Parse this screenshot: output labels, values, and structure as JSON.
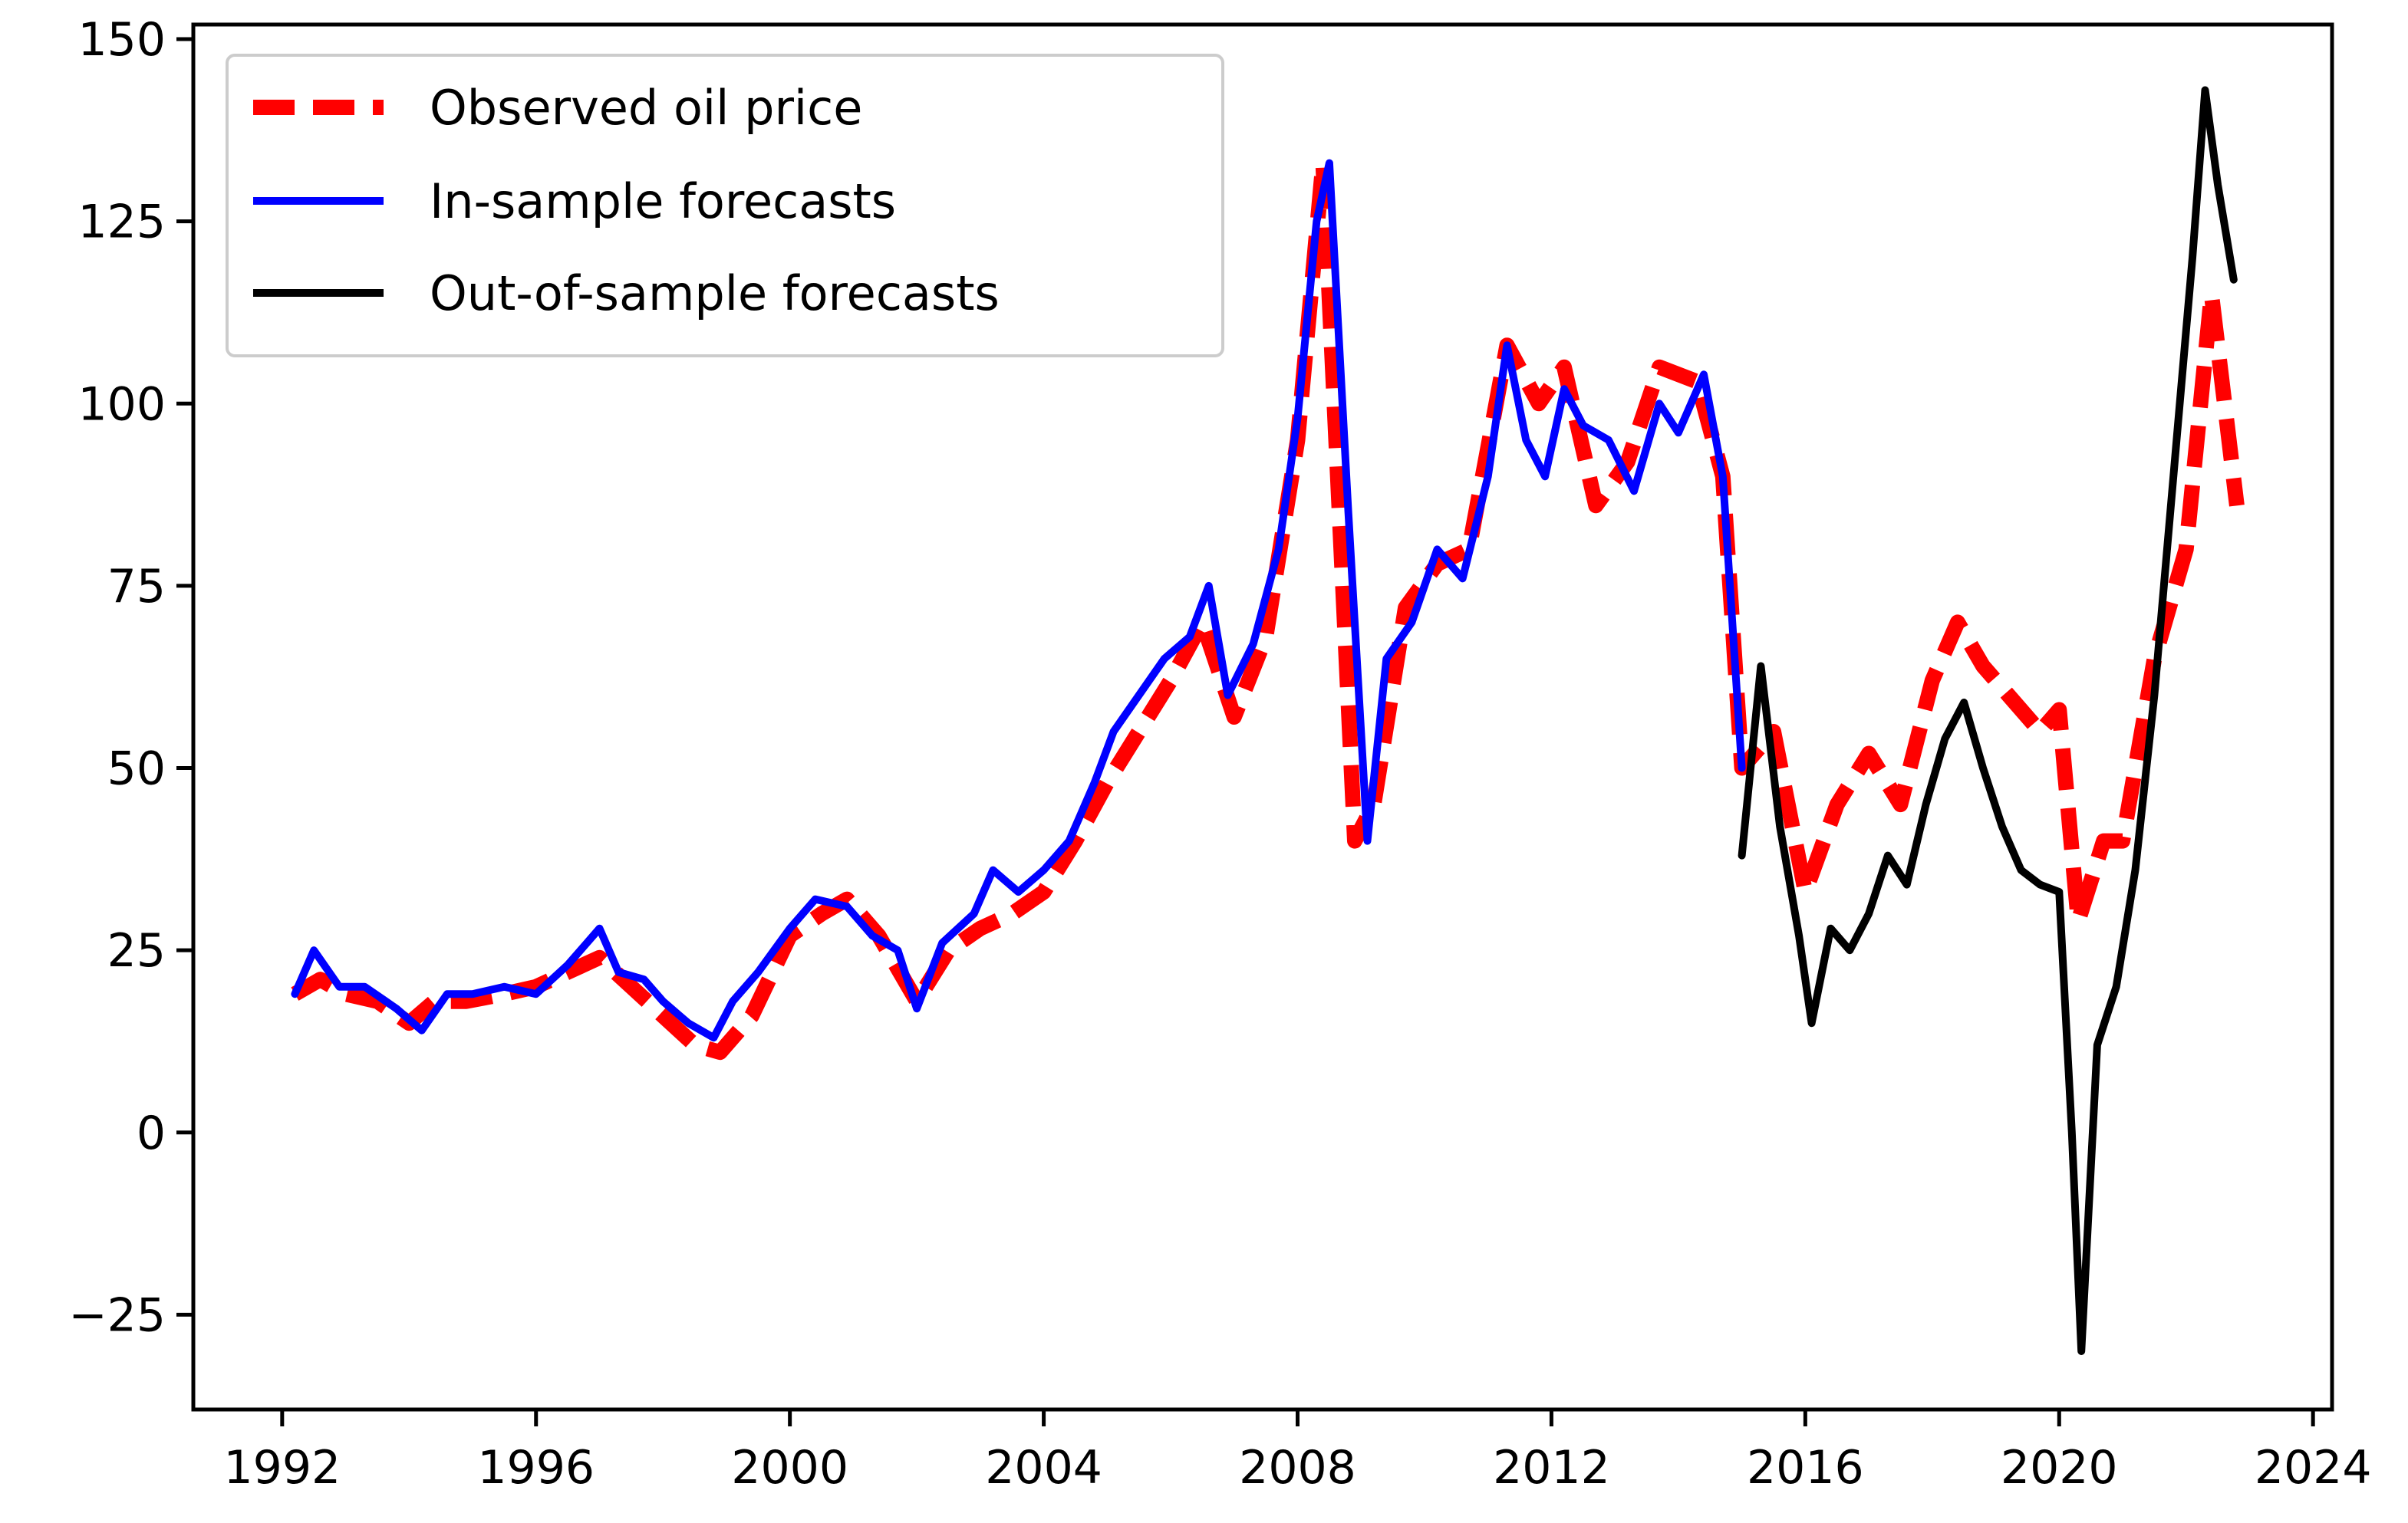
{
  "chart_data": {
    "type": "line",
    "title": "",
    "xlabel": "",
    "ylabel": "",
    "xlim": [
      1990.6,
      2024.3
    ],
    "ylim": [
      -38,
      152
    ],
    "grid": false,
    "legend_position": "top-left",
    "xticks": [
      1992,
      1996,
      2000,
      2004,
      2008,
      2012,
      2016,
      2020,
      2024
    ],
    "xtick_labels": [
      "1992",
      "1996",
      "2000",
      "2004",
      "2008",
      "2012",
      "2016",
      "2020",
      "2024"
    ],
    "yticks": [
      150,
      125,
      100,
      75,
      50,
      25,
      0,
      -25
    ],
    "ytick_labels": [
      "150",
      "125",
      "100",
      "75",
      "50",
      "25",
      "0",
      "−25"
    ],
    "series": [
      {
        "name": "Observed oil price",
        "color": "#ff0000",
        "style": "dashed",
        "x": [
          1992.2,
          1992.6,
          1993.0,
          1993.5,
          1994.0,
          1994.4,
          1994.9,
          1995.5,
          1996.0,
          1996.5,
          1997.0,
          1997.5,
          1998.0,
          1998.5,
          1998.9,
          1999.4,
          2000.0,
          2000.5,
          2000.9,
          2001.4,
          2002.0,
          2002.5,
          2003.0,
          2003.5,
          2004.0,
          2004.5,
          2005.0,
          2005.5,
          2006.0,
          2006.5,
          2007.0,
          2007.5,
          2008.0,
          2008.4,
          2008.9,
          2009.2,
          2009.7,
          2010.2,
          2010.7,
          2011.3,
          2011.8,
          2012.2,
          2012.7,
          2013.2,
          2013.7,
          2014.3,
          2014.7,
          2015.0,
          2015.5,
          2016.0,
          2016.5,
          2017.0,
          2017.5,
          2018.0,
          2018.4,
          2018.8,
          2019.2,
          2019.7,
          2020.0,
          2020.3,
          2020.7,
          2021.0,
          2021.5,
          2022.0,
          2022.4,
          2022.8
        ],
        "values": [
          19,
          21,
          19,
          18,
          15,
          18,
          18,
          19,
          20,
          22,
          24,
          20,
          16,
          12,
          11,
          16,
          27,
          30,
          32,
          27,
          18,
          25,
          28,
          30,
          33,
          40,
          48,
          55,
          62,
          70,
          57,
          68,
          95,
          133,
          40,
          45,
          72,
          78,
          80,
          108,
          100,
          105,
          86,
          92,
          105,
          103,
          90,
          50,
          55,
          33,
          45,
          52,
          45,
          62,
          70,
          64,
          60,
          55,
          58,
          29,
          40,
          40,
          65,
          80,
          115,
          86
        ]
      },
      {
        "name": "In-sample forecasts",
        "color": "#0000ff",
        "style": "solid",
        "x": [
          1992.2,
          1992.5,
          1992.9,
          1993.3,
          1993.8,
          1994.2,
          1994.6,
          1995.0,
          1995.5,
          1996.0,
          1996.5,
          1997.0,
          1997.3,
          1997.7,
          1998.0,
          1998.4,
          1998.8,
          1999.1,
          1999.5,
          2000.0,
          2000.4,
          2000.9,
          2001.3,
          2001.7,
          2002.0,
          2002.4,
          2002.9,
          2003.2,
          2003.6,
          2004.0,
          2004.4,
          2004.8,
          2005.1,
          2005.5,
          2005.9,
          2006.3,
          2006.6,
          2006.9,
          2007.3,
          2007.7,
          2008.0,
          2008.3,
          2008.5,
          2008.8,
          2009.1,
          2009.4,
          2009.8,
          2010.2,
          2010.6,
          2011.0,
          2011.3,
          2011.6,
          2011.9,
          2012.2,
          2012.5,
          2012.9,
          2013.3,
          2013.7,
          2014.0,
          2014.4,
          2014.7,
          2015.0
        ],
        "values": [
          19,
          25,
          20,
          20,
          17,
          14,
          19,
          19,
          20,
          19,
          23,
          28,
          22,
          21,
          18,
          15,
          13,
          18,
          22,
          28,
          32,
          31,
          27,
          25,
          17,
          26,
          30,
          36,
          33,
          36,
          40,
          48,
          55,
          60,
          65,
          68,
          75,
          60,
          67,
          80,
          98,
          125,
          133,
          85,
          40,
          65,
          70,
          80,
          76,
          90,
          108,
          95,
          90,
          102,
          97,
          95,
          88,
          100,
          96,
          104,
          90,
          50
        ]
      },
      {
        "name": "Out-of-sample forecasts",
        "color": "#000000",
        "style": "solid",
        "x": [
          2015.0,
          2015.3,
          2015.6,
          2015.9,
          2016.1,
          2016.4,
          2016.7,
          2017.0,
          2017.3,
          2017.6,
          2017.9,
          2018.2,
          2018.5,
          2018.8,
          2019.1,
          2019.4,
          2019.7,
          2020.0,
          2020.2,
          2020.35,
          2020.6,
          2020.9,
          2021.2,
          2021.5,
          2021.8,
          2022.1,
          2022.3,
          2022.5,
          2022.75
        ],
        "values": [
          38,
          64,
          42,
          27,
          15,
          28,
          25,
          30,
          38,
          34,
          45,
          54,
          59,
          50,
          42,
          36,
          34,
          33,
          0,
          -30,
          12,
          20,
          36,
          60,
          90,
          120,
          143,
          130,
          117
        ]
      }
    ]
  }
}
